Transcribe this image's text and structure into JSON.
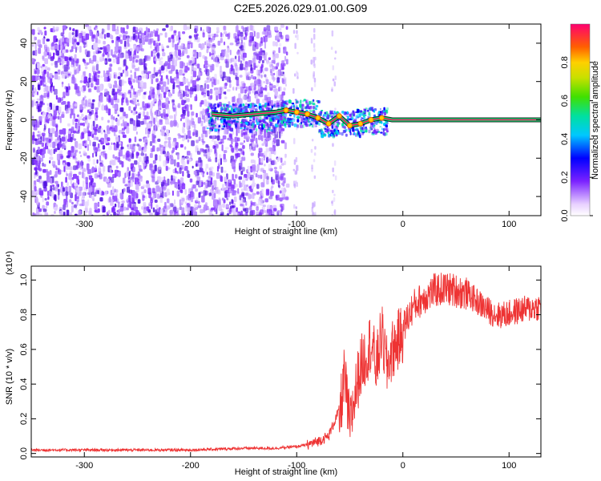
{
  "title": "C2E5.2026.029.01.00.G09",
  "chart_data": [
    {
      "type": "heatmap",
      "xlabel": "Height of straight line (km)",
      "ylabel": "Frequency (Hz)",
      "xlim": [
        -350,
        130
      ],
      "ylim": [
        -50,
        50
      ],
      "xticks": [
        -300,
        -200,
        -100,
        0,
        100
      ],
      "yticks": [
        -40,
        -20,
        0,
        20,
        40
      ],
      "xtick_labels": [
        "-300",
        "-200",
        "-100",
        "0",
        "100"
      ],
      "ytick_labels": [
        "-40",
        "-20",
        "0",
        "20",
        "40"
      ],
      "colorbar": {
        "label": "Normalized spectral amplitude",
        "range": [
          0,
          1
        ],
        "ticks": [
          0.0,
          0.2,
          0.4,
          0.6,
          0.8
        ],
        "tick_labels": [
          "0.0",
          "0.2",
          "0.4",
          "0.6",
          "0.8"
        ]
      },
      "ridge": {
        "x": [
          -180,
          -160,
          -140,
          -120,
          -110,
          -100,
          -90,
          -80,
          -70,
          -60,
          -50,
          -40,
          -30,
          -20,
          -10,
          0,
          20,
          50,
          80,
          95,
          110,
          130
        ],
        "y": [
          3,
          2,
          3,
          4,
          5,
          4,
          3,
          1,
          -2,
          2,
          -3,
          -2,
          0,
          1,
          0,
          0,
          0,
          0,
          0,
          0,
          0,
          0
        ]
      }
    },
    {
      "type": "line",
      "xlabel": "Height of straight line (km)",
      "ylabel": "SNR (10 * v/v)",
      "yscale_label": "(x10⁴)",
      "xlim": [
        -350,
        130
      ],
      "ylim": [
        -0.02,
        1.08
      ],
      "xticks": [
        -300,
        -200,
        -100,
        0,
        100
      ],
      "yticks": [
        0.0,
        0.2,
        0.4,
        0.6,
        0.8,
        1.0
      ],
      "xtick_labels": [
        "-300",
        "-200",
        "-100",
        "0",
        "100"
      ],
      "ytick_labels": [
        "0.0",
        "0.2",
        "0.4",
        "0.6",
        "0.8",
        "1.0"
      ],
      "series": [
        {
          "color": "#ee3333",
          "x": [
            -350,
            -300,
            -250,
            -200,
            -150,
            -120,
            -100,
            -90,
            -80,
            -70,
            -60,
            -55,
            -50,
            -45,
            -40,
            -35,
            -30,
            -25,
            -20,
            -15,
            -10,
            -5,
            0,
            10,
            20,
            30,
            40,
            50,
            60,
            70,
            80,
            90,
            100,
            110,
            120,
            130
          ],
          "y": [
            0.02,
            0.02,
            0.02,
            0.02,
            0.03,
            0.03,
            0.04,
            0.05,
            0.07,
            0.1,
            0.25,
            0.5,
            0.2,
            0.4,
            0.55,
            0.62,
            0.7,
            0.55,
            0.75,
            0.55,
            0.65,
            0.7,
            0.75,
            0.88,
            0.93,
            0.97,
            0.98,
            0.97,
            0.95,
            0.9,
            0.85,
            0.82,
            0.83,
            0.85,
            0.86,
            0.87
          ]
        }
      ]
    }
  ]
}
